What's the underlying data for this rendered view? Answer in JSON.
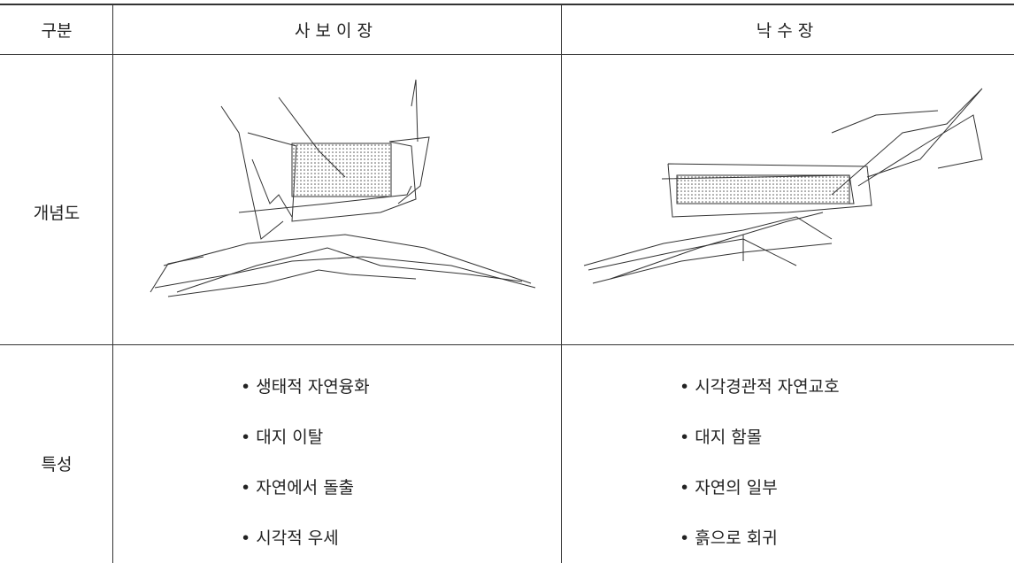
{
  "table": {
    "header": [
      "구분",
      "사보이장",
      "낙수장"
    ],
    "rows": [
      {
        "label": "개념도"
      },
      {
        "label": "특성",
        "columns": [
          [
            "• 생태적 자연융화",
            "• 대지 이탈",
            "• 자연에서 돌출",
            "• 시각적 우세"
          ],
          [
            "• 시각경관적 자연교호",
            "• 대지 함몰",
            "• 자연의 일부",
            "• 흙으로 회귀"
          ]
        ]
      }
    ]
  }
}
